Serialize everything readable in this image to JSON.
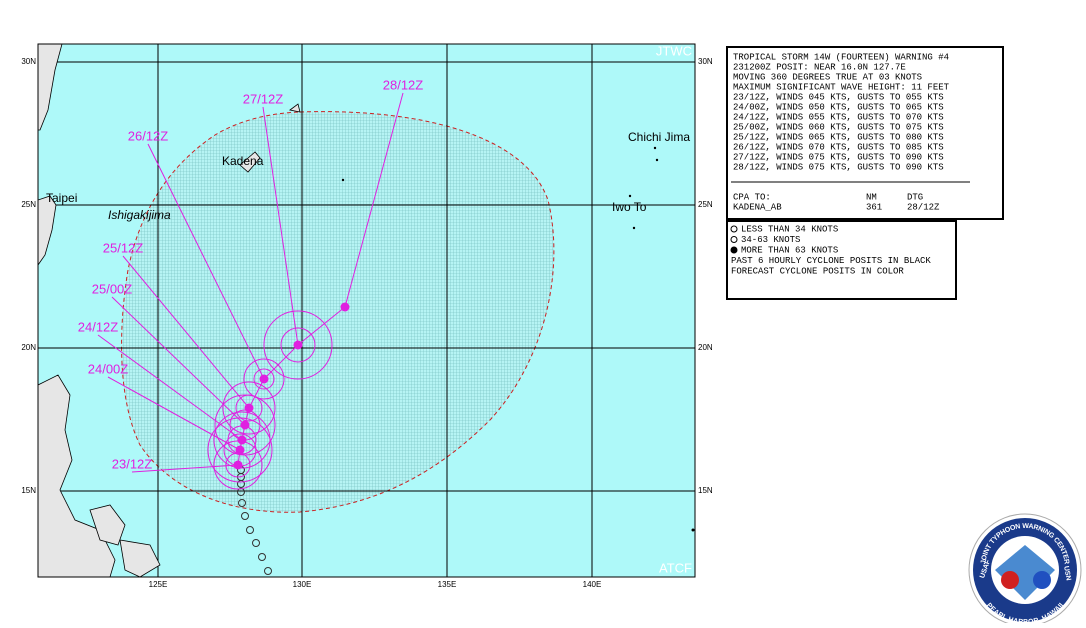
{
  "map": {
    "agency_top": "JTWC",
    "agency_bottom": "ATCF",
    "lat_labels_left": [
      "30N",
      "25N",
      "20N",
      "15N"
    ],
    "lat_labels_right": [
      "30N",
      "25N",
      "20N",
      "15N"
    ],
    "lon_labels": [
      "125E",
      "130E",
      "135E",
      "140E"
    ],
    "places": [
      "Taipei",
      "Ishigakijima",
      "Kadena",
      "Chichi Jima",
      "Iwo To"
    ],
    "forecast_labels": [
      "28/12Z",
      "27/12Z",
      "26/12Z",
      "25/12Z",
      "25/00Z",
      "24/12Z",
      "24/00Z",
      "23/12Z"
    ]
  },
  "warning": {
    "lines": [
      "TROPICAL STORM 14W (FOURTEEN) WARNING #4",
      "231200Z POSIT: NEAR 16.0N 127.7E",
      "MOVING 360 DEGREES TRUE AT 03 KNOTS",
      "MAXIMUM SIGNIFICANT WAVE HEIGHT: 11 FEET",
      "23/12Z, WINDS 045 KTS, GUSTS TO 055 KTS",
      "24/00Z, WINDS 050 KTS, GUSTS TO 065 KTS",
      "24/12Z, WINDS 055 KTS, GUSTS TO 070 KTS",
      "25/00Z, WINDS 060 KTS, GUSTS TO 075 KTS",
      "25/12Z, WINDS 065 KTS, GUSTS TO 080 KTS",
      "26/12Z, WINDS 070 KTS, GUSTS TO 085 KTS",
      "27/12Z, WINDS 075 KTS, GUSTS TO 090 KTS",
      "28/12Z, WINDS 075 KTS, GUSTS TO 090 KTS"
    ],
    "cpa_header": [
      "CPA TO:",
      "NM",
      "DTG"
    ],
    "cpa_row": [
      "KADENA_AB",
      "361",
      "28/12Z"
    ]
  },
  "legend": {
    "lines": [
      "LESS THAN 34 KNOTS",
      "34-63 KNOTS",
      "MORE THAN 63 KNOTS",
      "PAST 6 HOURLY CYCLONE POSITS IN BLACK",
      "FORECAST CYCLONE POSITS IN COLOR"
    ]
  },
  "seal": {
    "top": "JOINT TYPHOON WARNING CENTER",
    "left": "USAF",
    "right": "USN",
    "bottom": "PEARL HARBOR, HAWAII"
  }
}
